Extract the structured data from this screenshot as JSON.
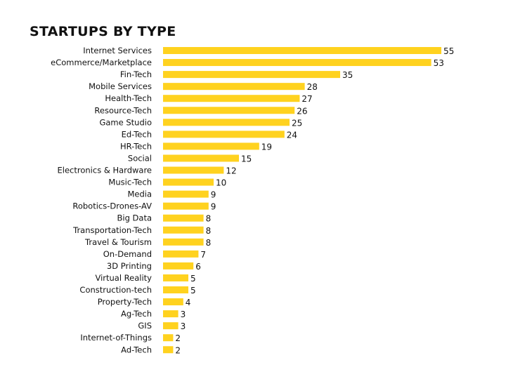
{
  "chart_data": {
    "type": "bar",
    "orientation": "horizontal",
    "title": "STARTUPS BY TYPE",
    "categories": [
      "Internet Services",
      "eCommerce/Marketplace",
      "Fin-Tech",
      "Mobile Services",
      "Health-Tech",
      "Resource-Tech",
      "Game Studio",
      "Ed-Tech",
      "HR-Tech",
      "Social",
      "Electronics & Hardware",
      "Music-Tech",
      "Media",
      "Robotics-Drones-AV",
      "Big Data",
      "Transportation-Tech",
      "Travel & Tourism",
      "On-Demand",
      "3D Printing",
      "Virtual Reality",
      "Construction-tech",
      "Property-Tech",
      "Ag-Tech",
      "GIS",
      "Internet-of-Things",
      "Ad-Tech"
    ],
    "values": [
      55,
      53,
      35,
      28,
      27,
      26,
      25,
      24,
      19,
      15,
      12,
      10,
      9,
      9,
      8,
      8,
      8,
      7,
      6,
      5,
      5,
      4,
      3,
      3,
      2,
      2
    ],
    "xlim": [
      0,
      55
    ],
    "bar_color": "#FFD21F",
    "grid": false,
    "legend": "none"
  }
}
